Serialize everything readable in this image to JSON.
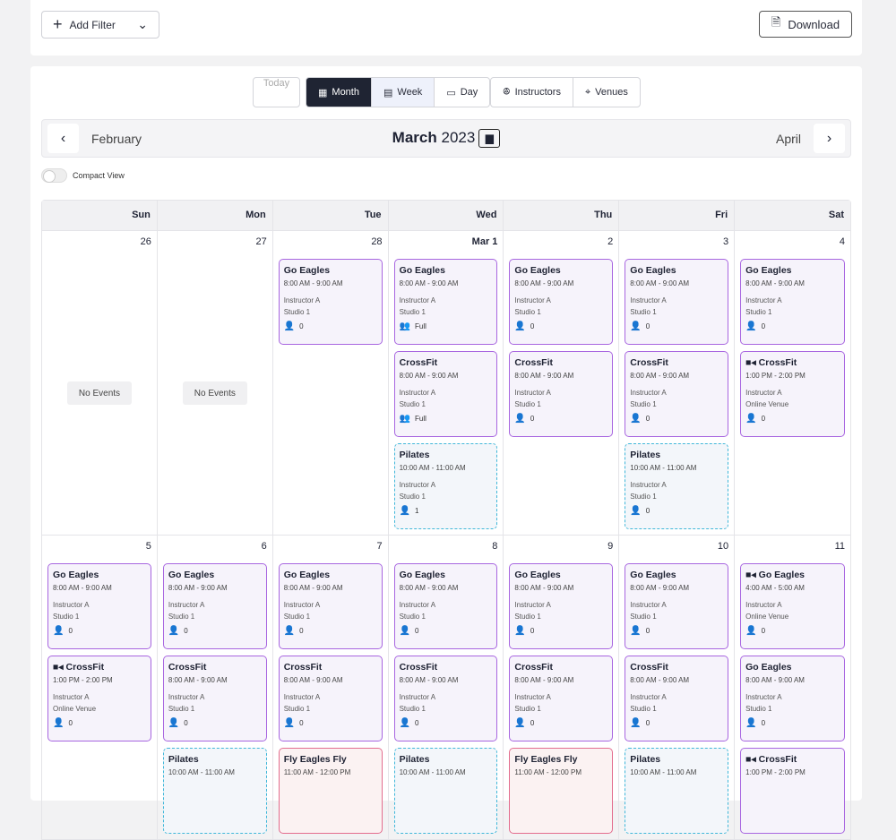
{
  "toolbar": {
    "add_filter": "Add Filter",
    "download": "Download"
  },
  "views": {
    "today": "Today",
    "month": "Month",
    "week": "Week",
    "day": "Day",
    "instructors": "Instructors",
    "venues": "Venues",
    "active": "Month"
  },
  "nav": {
    "prev": "February",
    "next": "April",
    "month": "March",
    "year": "2023"
  },
  "compact_view": {
    "label": "Compact View",
    "on": false
  },
  "weekdays": [
    "Sun",
    "Mon",
    "Tue",
    "Wed",
    "Thu",
    "Fri",
    "Sat"
  ],
  "no_events": "No Events",
  "weeks": [
    [
      {
        "d": "26",
        "ev": []
      },
      {
        "d": "27",
        "ev": []
      },
      {
        "d": "28",
        "ev": [
          {
            "t": "Go Eagles",
            "tm": "8:00 AM - 9:00 AM",
            "i": "Instructor A",
            "v": "Studio 1",
            "c": "0",
            "k": "eg"
          }
        ]
      },
      {
        "d": "Mar 1",
        "ev": [
          {
            "t": "Go Eagles",
            "tm": "8:00 AM - 9:00 AM",
            "i": "Instructor A",
            "v": "Studio 1",
            "c": "Full",
            "k": "eg",
            "g": 1
          },
          {
            "t": "CrossFit",
            "tm": "8:00 AM - 9:00 AM",
            "i": "Instructor A",
            "v": "Studio 1",
            "c": "Full",
            "k": "eg",
            "g": 1
          },
          {
            "t": "Pilates",
            "tm": "10:00 AM - 11:00 AM",
            "i": "Instructor A",
            "v": "Studio 1",
            "c": "1",
            "k": "pil"
          }
        ]
      },
      {
        "d": "2",
        "ev": [
          {
            "t": "Go Eagles",
            "tm": "8:00 AM - 9:00 AM",
            "i": "Instructor A",
            "v": "Studio 1",
            "c": "0",
            "k": "eg"
          },
          {
            "t": "CrossFit",
            "tm": "8:00 AM - 9:00 AM",
            "i": "Instructor A",
            "v": "Studio 1",
            "c": "0",
            "k": "eg"
          }
        ]
      },
      {
        "d": "3",
        "ev": [
          {
            "t": "Go Eagles",
            "tm": "8:00 AM - 9:00 AM",
            "i": "Instructor A",
            "v": "Studio 1",
            "c": "0",
            "k": "eg"
          },
          {
            "t": "CrossFit",
            "tm": "8:00 AM - 9:00 AM",
            "i": "Instructor A",
            "v": "Studio 1",
            "c": "0",
            "k": "eg"
          },
          {
            "t": "Pilates",
            "tm": "10:00 AM - 11:00 AM",
            "i": "Instructor A",
            "v": "Studio 1",
            "c": "0",
            "k": "pil"
          }
        ]
      },
      {
        "d": "4",
        "ev": [
          {
            "t": "Go Eagles",
            "tm": "8:00 AM - 9:00 AM",
            "i": "Instructor A",
            "v": "Studio 1",
            "c": "0",
            "k": "eg"
          },
          {
            "t": "CrossFit",
            "tm": "1:00 PM - 2:00 PM",
            "i": "Instructor A",
            "v": "Online Venue",
            "c": "0",
            "k": "eg",
            "vid": 1
          }
        ]
      }
    ],
    [
      {
        "d": "5",
        "ev": [
          {
            "t": "Go Eagles",
            "tm": "8:00 AM - 9:00 AM",
            "i": "Instructor A",
            "v": "Studio 1",
            "c": "0",
            "k": "eg"
          },
          {
            "t": "CrossFit",
            "tm": "1:00 PM - 2:00 PM",
            "i": "Instructor A",
            "v": "Online Venue",
            "c": "0",
            "k": "eg",
            "vid": 1
          }
        ]
      },
      {
        "d": "6",
        "ev": [
          {
            "t": "Go Eagles",
            "tm": "8:00 AM - 9:00 AM",
            "i": "Instructor A",
            "v": "Studio 1",
            "c": "0",
            "k": "eg"
          },
          {
            "t": "CrossFit",
            "tm": "8:00 AM - 9:00 AM",
            "i": "Instructor A",
            "v": "Studio 1",
            "c": "0",
            "k": "eg"
          },
          {
            "t": "Pilates",
            "tm": "10:00 AM - 11:00 AM",
            "k": "pil"
          }
        ]
      },
      {
        "d": "7",
        "ev": [
          {
            "t": "Go Eagles",
            "tm": "8:00 AM - 9:00 AM",
            "i": "Instructor A",
            "v": "Studio 1",
            "c": "0",
            "k": "eg"
          },
          {
            "t": "CrossFit",
            "tm": "8:00 AM - 9:00 AM",
            "i": "Instructor A",
            "v": "Studio 1",
            "c": "0",
            "k": "eg"
          },
          {
            "t": "Fly Eagles Fly",
            "tm": "11:00 AM - 12:00 PM",
            "k": "fly"
          }
        ]
      },
      {
        "d": "8",
        "ev": [
          {
            "t": "Go Eagles",
            "tm": "8:00 AM - 9:00 AM",
            "i": "Instructor A",
            "v": "Studio 1",
            "c": "0",
            "k": "eg"
          },
          {
            "t": "CrossFit",
            "tm": "8:00 AM - 9:00 AM",
            "i": "Instructor A",
            "v": "Studio 1",
            "c": "0",
            "k": "eg"
          },
          {
            "t": "Pilates",
            "tm": "10:00 AM - 11:00 AM",
            "k": "pil"
          }
        ]
      },
      {
        "d": "9",
        "ev": [
          {
            "t": "Go Eagles",
            "tm": "8:00 AM - 9:00 AM",
            "i": "Instructor A",
            "v": "Studio 1",
            "c": "0",
            "k": "eg"
          },
          {
            "t": "CrossFit",
            "tm": "8:00 AM - 9:00 AM",
            "i": "Instructor A",
            "v": "Studio 1",
            "c": "0",
            "k": "eg"
          },
          {
            "t": "Fly Eagles Fly",
            "tm": "11:00 AM - 12:00 PM",
            "k": "fly"
          }
        ]
      },
      {
        "d": "10",
        "ev": [
          {
            "t": "Go Eagles",
            "tm": "8:00 AM - 9:00 AM",
            "i": "Instructor A",
            "v": "Studio 1",
            "c": "0",
            "k": "eg"
          },
          {
            "t": "CrossFit",
            "tm": "8:00 AM - 9:00 AM",
            "i": "Instructor A",
            "v": "Studio 1",
            "c": "0",
            "k": "eg"
          },
          {
            "t": "Pilates",
            "tm": "10:00 AM - 11:00 AM",
            "k": "pil"
          }
        ]
      },
      {
        "d": "11",
        "ev": [
          {
            "t": "Go Eagles",
            "tm": "4:00 AM - 5:00 AM",
            "i": "Instructor A",
            "v": "Online Venue",
            "c": "0",
            "k": "eg",
            "vid": 1
          },
          {
            "t": "Go Eagles",
            "tm": "8:00 AM - 9:00 AM",
            "i": "Instructor A",
            "v": "Studio 1",
            "c": "0",
            "k": "eg"
          },
          {
            "t": "CrossFit",
            "tm": "1:00 PM - 2:00 PM",
            "k": "eg",
            "vid": 1
          }
        ]
      }
    ]
  ]
}
